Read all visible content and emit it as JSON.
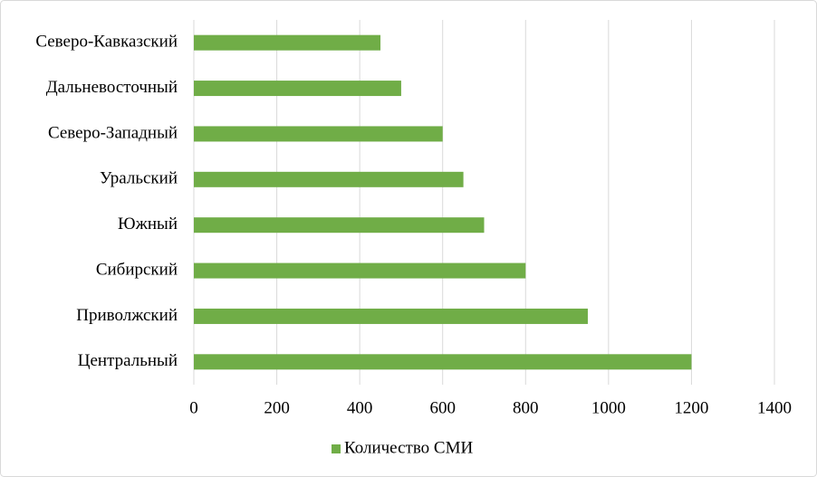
{
  "chart_data": {
    "type": "bar",
    "orientation": "horizontal",
    "categories": [
      "Северо-Кавказский",
      "Дальневосточный",
      "Северо-Западный",
      "Уральский",
      "Южный",
      "Сибирский",
      "Приволжский",
      "Центральный"
    ],
    "series": [
      {
        "name": "Количество СМИ",
        "color": "#70ad47",
        "values": [
          450,
          500,
          600,
          650,
          700,
          800,
          950,
          1200
        ]
      }
    ],
    "xlim": [
      0,
      1400
    ],
    "xticks": [
      0,
      200,
      400,
      600,
      800,
      1000,
      1200,
      1400
    ],
    "grid": true,
    "legend": "bottom"
  }
}
